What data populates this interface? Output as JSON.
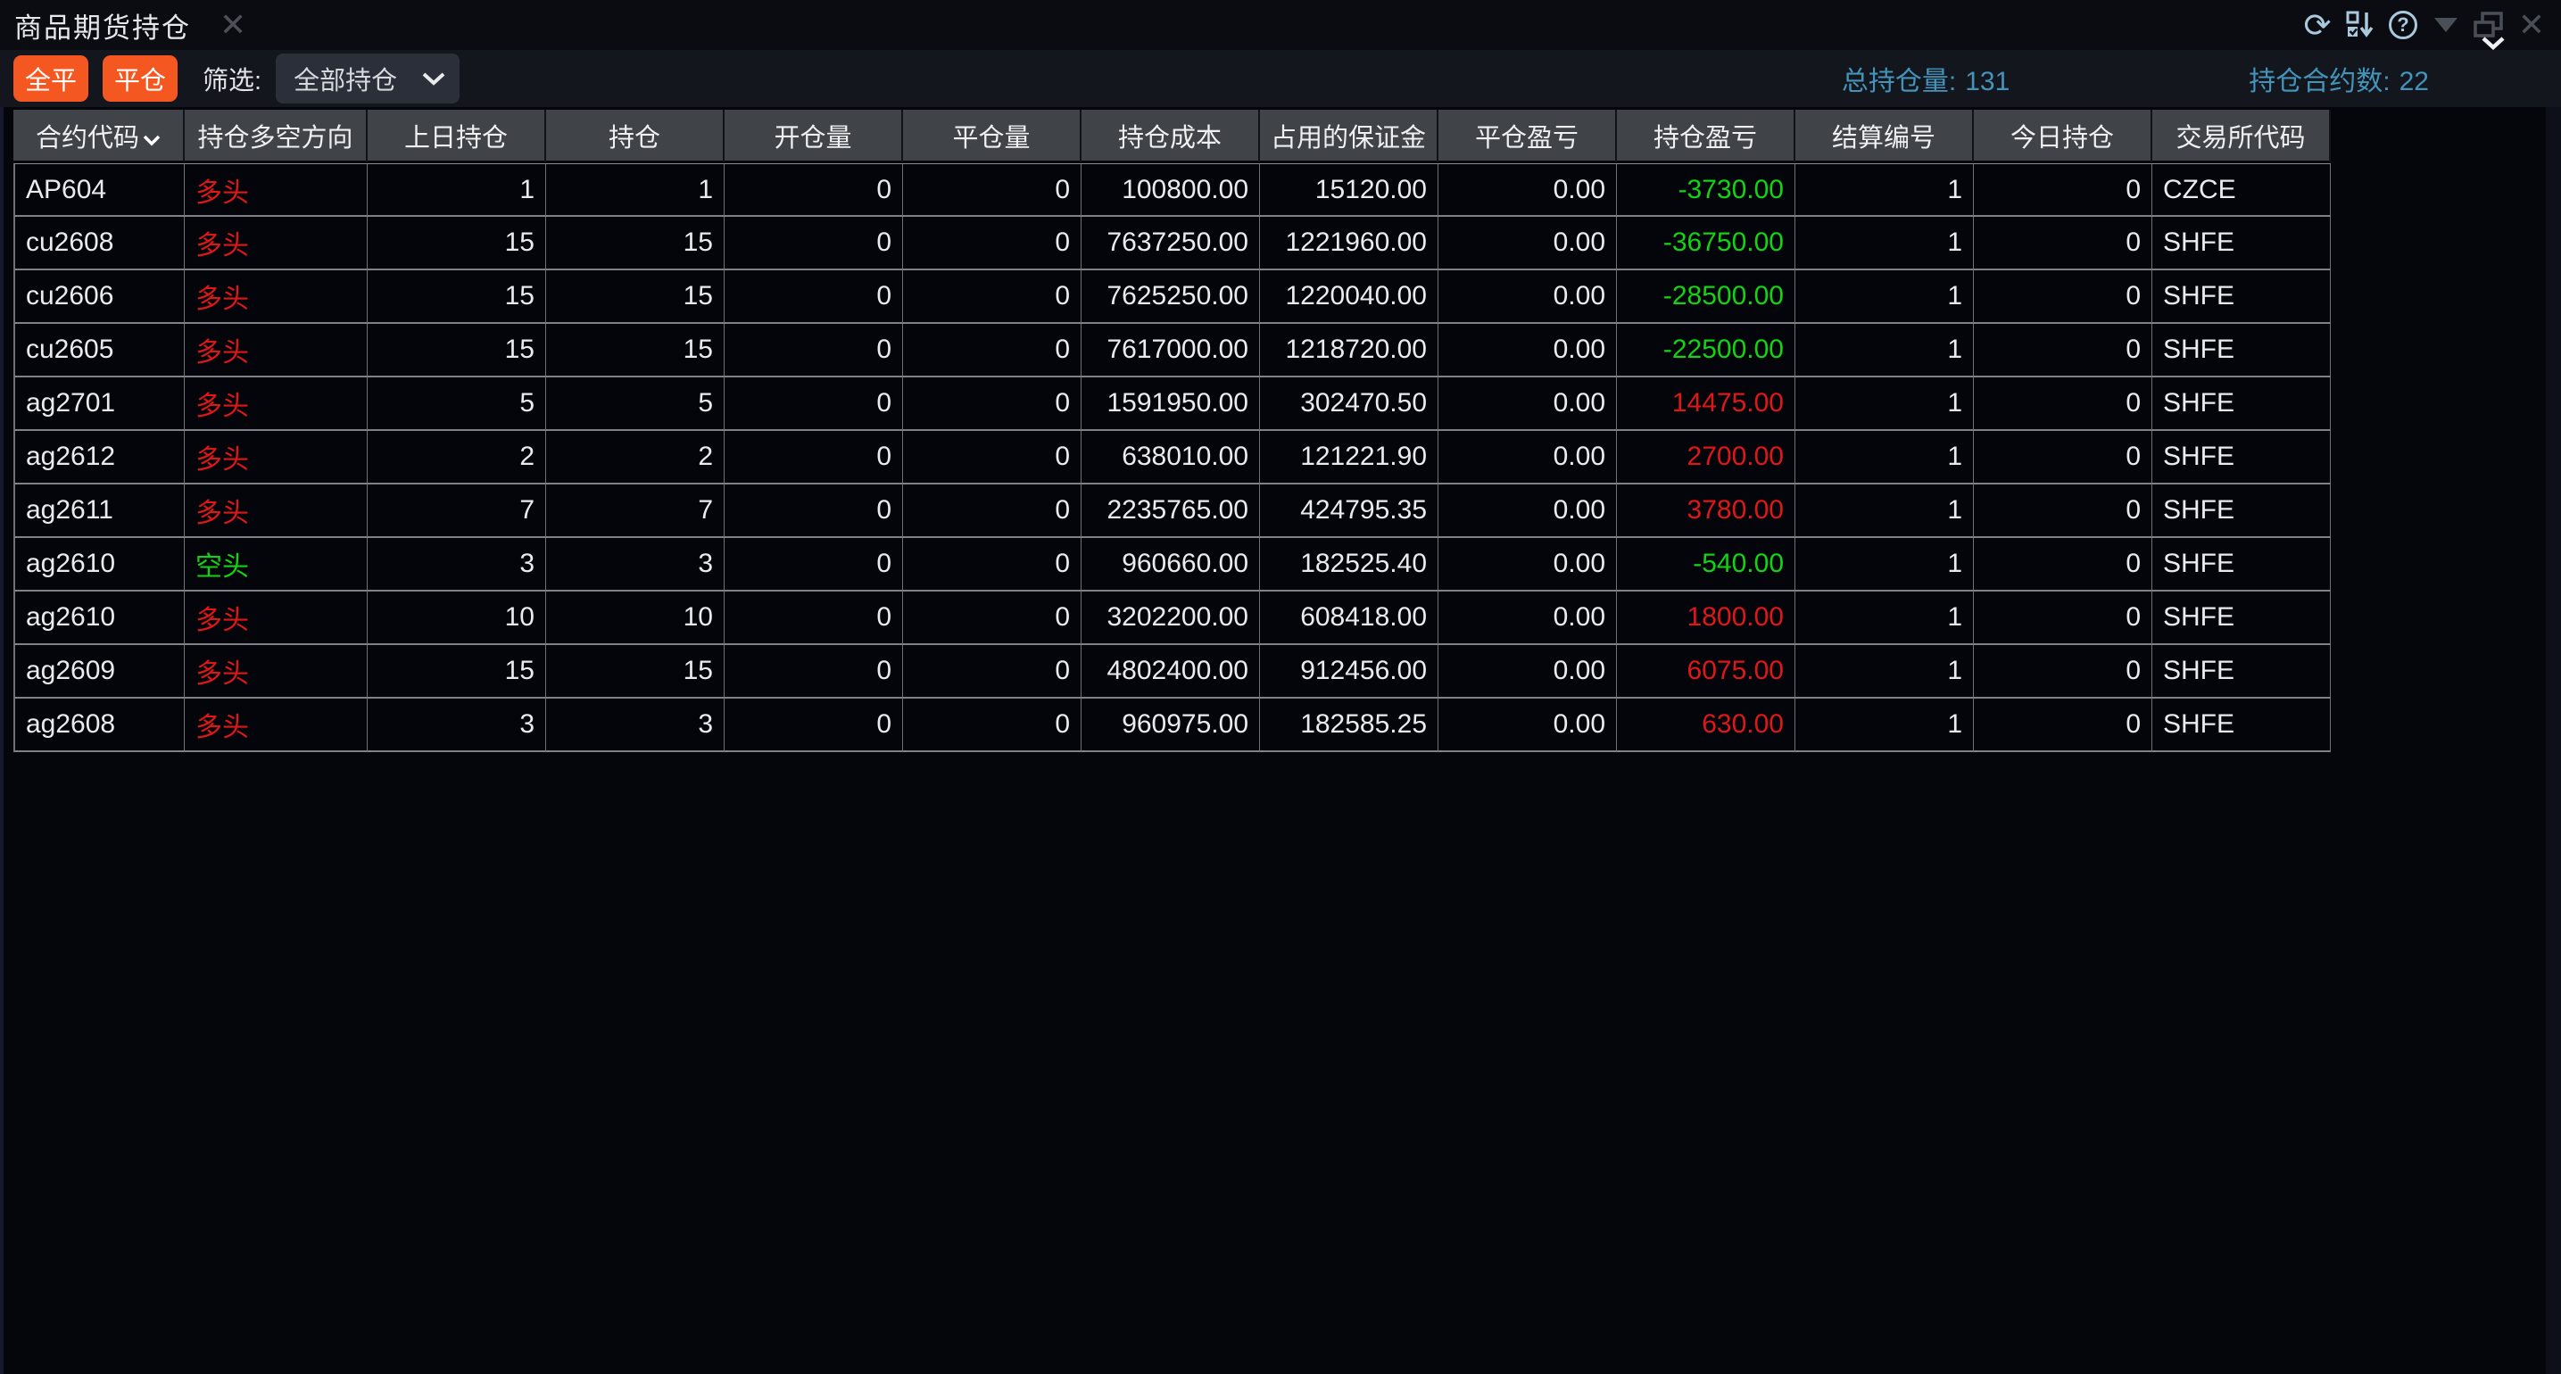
{
  "window": {
    "title": "商品期货持仓"
  },
  "toolbar": {
    "close_all_button": "全平",
    "close_position_button": "平仓",
    "filter_label": "筛选:",
    "filter_selected": "全部持仓",
    "total_volume_label": "总持仓量:",
    "total_volume_value": "131",
    "contract_count_label": "持仓合约数:",
    "contract_count_value": "22"
  },
  "colors": {
    "accent_orange": "#f4571f",
    "stat_blue": "#4394ba",
    "long_red": "#e01717",
    "short_green": "#12d412"
  },
  "table": {
    "columns": [
      {
        "key": "contract_code",
        "label": "合约代码",
        "align": "left",
        "sortable": true
      },
      {
        "key": "direction",
        "label": "持仓多空方向",
        "align": "left"
      },
      {
        "key": "prev_position",
        "label": "上日持仓",
        "align": "right"
      },
      {
        "key": "position",
        "label": "持仓",
        "align": "right"
      },
      {
        "key": "open_volume",
        "label": "开仓量",
        "align": "right"
      },
      {
        "key": "close_volume",
        "label": "平仓量",
        "align": "right"
      },
      {
        "key": "position_cost",
        "label": "持仓成本",
        "align": "right"
      },
      {
        "key": "margin_used",
        "label": "占用的保证金",
        "align": "right"
      },
      {
        "key": "close_pl",
        "label": "平仓盈亏",
        "align": "right"
      },
      {
        "key": "position_pl",
        "label": "持仓盈亏",
        "align": "right"
      },
      {
        "key": "settlement_id",
        "label": "结算编号",
        "align": "right"
      },
      {
        "key": "today_position",
        "label": "今日持仓",
        "align": "right"
      },
      {
        "key": "exchange",
        "label": "交易所代码",
        "align": "left"
      }
    ],
    "rows": [
      {
        "contract_code": "AP604",
        "direction": "多头",
        "direction_color": "red",
        "prev_position": "1",
        "position": "1",
        "open_volume": "0",
        "close_volume": "0",
        "position_cost": "100800.00",
        "margin_used": "15120.00",
        "close_pl": "0.00",
        "position_pl": "-3730.00",
        "position_pl_color": "green",
        "settlement_id": "1",
        "today_position": "0",
        "exchange": "CZCE"
      },
      {
        "contract_code": "cu2608",
        "direction": "多头",
        "direction_color": "red",
        "prev_position": "15",
        "position": "15",
        "open_volume": "0",
        "close_volume": "0",
        "position_cost": "7637250.00",
        "margin_used": "1221960.00",
        "close_pl": "0.00",
        "position_pl": "-36750.00",
        "position_pl_color": "green",
        "settlement_id": "1",
        "today_position": "0",
        "exchange": "SHFE"
      },
      {
        "contract_code": "cu2606",
        "direction": "多头",
        "direction_color": "red",
        "prev_position": "15",
        "position": "15",
        "open_volume": "0",
        "close_volume": "0",
        "position_cost": "7625250.00",
        "margin_used": "1220040.00",
        "close_pl": "0.00",
        "position_pl": "-28500.00",
        "position_pl_color": "green",
        "settlement_id": "1",
        "today_position": "0",
        "exchange": "SHFE"
      },
      {
        "contract_code": "cu2605",
        "direction": "多头",
        "direction_color": "red",
        "prev_position": "15",
        "position": "15",
        "open_volume": "0",
        "close_volume": "0",
        "position_cost": "7617000.00",
        "margin_used": "1218720.00",
        "close_pl": "0.00",
        "position_pl": "-22500.00",
        "position_pl_color": "green",
        "settlement_id": "1",
        "today_position": "0",
        "exchange": "SHFE"
      },
      {
        "contract_code": "ag2701",
        "direction": "多头",
        "direction_color": "red",
        "prev_position": "5",
        "position": "5",
        "open_volume": "0",
        "close_volume": "0",
        "position_cost": "1591950.00",
        "margin_used": "302470.50",
        "close_pl": "0.00",
        "position_pl": "14475.00",
        "position_pl_color": "red",
        "settlement_id": "1",
        "today_position": "0",
        "exchange": "SHFE"
      },
      {
        "contract_code": "ag2612",
        "direction": "多头",
        "direction_color": "red",
        "prev_position": "2",
        "position": "2",
        "open_volume": "0",
        "close_volume": "0",
        "position_cost": "638010.00",
        "margin_used": "121221.90",
        "close_pl": "0.00",
        "position_pl": "2700.00",
        "position_pl_color": "red",
        "settlement_id": "1",
        "today_position": "0",
        "exchange": "SHFE"
      },
      {
        "contract_code": "ag2611",
        "direction": "多头",
        "direction_color": "red",
        "prev_position": "7",
        "position": "7",
        "open_volume": "0",
        "close_volume": "0",
        "position_cost": "2235765.00",
        "margin_used": "424795.35",
        "close_pl": "0.00",
        "position_pl": "3780.00",
        "position_pl_color": "red",
        "settlement_id": "1",
        "today_position": "0",
        "exchange": "SHFE"
      },
      {
        "contract_code": "ag2610",
        "direction": "空头",
        "direction_color": "green",
        "prev_position": "3",
        "position": "3",
        "open_volume": "0",
        "close_volume": "0",
        "position_cost": "960660.00",
        "margin_used": "182525.40",
        "close_pl": "0.00",
        "position_pl": "-540.00",
        "position_pl_color": "green",
        "settlement_id": "1",
        "today_position": "0",
        "exchange": "SHFE"
      },
      {
        "contract_code": "ag2610",
        "direction": "多头",
        "direction_color": "red",
        "prev_position": "10",
        "position": "10",
        "open_volume": "0",
        "close_volume": "0",
        "position_cost": "3202200.00",
        "margin_used": "608418.00",
        "close_pl": "0.00",
        "position_pl": "1800.00",
        "position_pl_color": "red",
        "settlement_id": "1",
        "today_position": "0",
        "exchange": "SHFE"
      },
      {
        "contract_code": "ag2609",
        "direction": "多头",
        "direction_color": "red",
        "prev_position": "15",
        "position": "15",
        "open_volume": "0",
        "close_volume": "0",
        "position_cost": "4802400.00",
        "margin_used": "912456.00",
        "close_pl": "0.00",
        "position_pl": "6075.00",
        "position_pl_color": "red",
        "settlement_id": "1",
        "today_position": "0",
        "exchange": "SHFE"
      },
      {
        "contract_code": "ag2608",
        "direction": "多头",
        "direction_color": "red",
        "prev_position": "3",
        "position": "3",
        "open_volume": "0",
        "close_volume": "0",
        "position_cost": "960975.00",
        "margin_used": "182585.25",
        "close_pl": "0.00",
        "position_pl": "630.00",
        "position_pl_color": "red",
        "settlement_id": "1",
        "today_position": "0",
        "exchange": "SHFE"
      }
    ]
  }
}
